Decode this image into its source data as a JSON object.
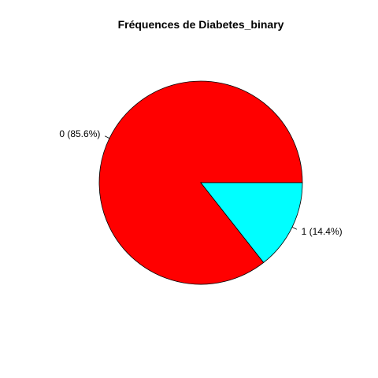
{
  "chart_data": {
    "type": "pie",
    "title": "Fréquences de Diabetes_binary",
    "categories": [
      "0",
      "1"
    ],
    "values": [
      85.6,
      14.4
    ],
    "labels": [
      "0 (85.6%)",
      "1 (14.4%)"
    ],
    "colors": [
      "#ff0000",
      "#00ffff"
    ],
    "start_angle_deg": 0,
    "direction": "counterclockwise",
    "legend": "none"
  }
}
